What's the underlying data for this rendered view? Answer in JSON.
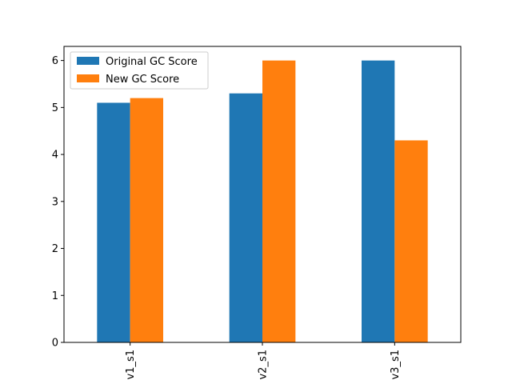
{
  "chart_data": {
    "type": "bar",
    "title": "",
    "xlabel": "",
    "ylabel": "",
    "categories": [
      "v1_s1",
      "v2_s1",
      "v3_s1"
    ],
    "series": [
      {
        "name": "Original GC Score",
        "values": [
          5.1,
          5.3,
          6.0
        ],
        "color": "#1f77b4"
      },
      {
        "name": "New GC Score",
        "values": [
          5.2,
          6.0,
          4.3
        ],
        "color": "#ff7f0e"
      }
    ],
    "ylim": [
      0,
      6.3
    ],
    "yticks": [
      0,
      1,
      2,
      3,
      4,
      5,
      6
    ],
    "grid": false,
    "legend_position": "top-left"
  }
}
